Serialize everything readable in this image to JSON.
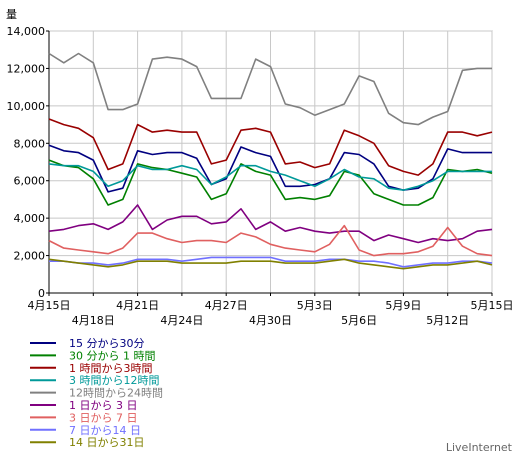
{
  "chart_data": {
    "type": "line",
    "ylabel": "量",
    "ylim": [
      0,
      14000
    ],
    "yticks": [
      0,
      2000,
      4000,
      6000,
      8000,
      10000,
      12000,
      14000
    ],
    "ytick_labels": [
      "0",
      "2,000",
      "4,000",
      "6,000",
      "8,000",
      "10,000",
      "12,000",
      "14,000"
    ],
    "grid": true,
    "legend_position": "bottom-left",
    "x": [
      "4月15日",
      "4月16日",
      "4月17日",
      "4月18日",
      "4月19日",
      "4月20日",
      "4月21日",
      "4月22日",
      "4月23日",
      "4月24日",
      "4月25日",
      "4月26日",
      "4月27日",
      "4月28日",
      "4月29日",
      "4月30日",
      "5月1日",
      "5月2日",
      "5月3日",
      "5月4日",
      "5月5日",
      "5月6日",
      "5月7日",
      "5月8日",
      "5月9日",
      "5月10日",
      "5月11日",
      "5月12日",
      "5月13日",
      "5月14日",
      "5月15日"
    ],
    "xticks": [
      {
        "index": 0,
        "label": "4月15日",
        "row": 0
      },
      {
        "index": 3,
        "label": "4月18日",
        "row": 1
      },
      {
        "index": 6,
        "label": "4月21日",
        "row": 0
      },
      {
        "index": 9,
        "label": "4月24日",
        "row": 1
      },
      {
        "index": 12,
        "label": "4月27日",
        "row": 0
      },
      {
        "index": 15,
        "label": "4月30日",
        "row": 1
      },
      {
        "index": 18,
        "label": "5月3日",
        "row": 0
      },
      {
        "index": 21,
        "label": "5月6日",
        "row": 1
      },
      {
        "index": 24,
        "label": "5月9日",
        "row": 0
      },
      {
        "index": 27,
        "label": "5月12日",
        "row": 1
      },
      {
        "index": 30,
        "label": "5月15日",
        "row": 0
      }
    ],
    "series": [
      {
        "name": "15 分から30分",
        "color": "#000080",
        "values": [
          7900,
          7600,
          7500,
          7100,
          5400,
          5600,
          7600,
          7400,
          7500,
          7500,
          7200,
          5800,
          6100,
          7800,
          7500,
          7300,
          5700,
          5700,
          5800,
          6100,
          7500,
          7400,
          6900,
          5700,
          5500,
          5600,
          6100,
          7700,
          7500,
          7500,
          7500
        ]
      },
      {
        "name": "30 分から 1 時間",
        "color": "#008000",
        "values": [
          7100,
          6800,
          6700,
          6100,
          4700,
          5000,
          6900,
          6700,
          6600,
          6400,
          6200,
          5000,
          5300,
          6900,
          6500,
          6300,
          5000,
          5100,
          5000,
          5200,
          6500,
          6300,
          5300,
          5000,
          4700,
          4700,
          5100,
          6600,
          6500,
          6600,
          6400
        ]
      },
      {
        "name": "1 時間から3時間",
        "color": "#990000",
        "values": [
          9300,
          9000,
          8800,
          8300,
          6600,
          6900,
          9000,
          8600,
          8700,
          8600,
          8600,
          6900,
          7100,
          8700,
          8800,
          8600,
          6900,
          7000,
          6700,
          6900,
          8700,
          8400,
          8000,
          6800,
          6500,
          6300,
          6900,
          8600,
          8600,
          8400,
          8600
        ]
      },
      {
        "name": "3 時間から12時間",
        "color": "#009999",
        "values": [
          6900,
          6800,
          6800,
          6500,
          5700,
          6000,
          6800,
          6600,
          6600,
          6800,
          6600,
          5800,
          6200,
          6800,
          6800,
          6500,
          6300,
          6000,
          5700,
          6100,
          6600,
          6200,
          6100,
          5600,
          5500,
          5700,
          6000,
          6500,
          6500,
          6500,
          6500
        ]
      },
      {
        "name": "12時間から24時間",
        "color": "#808080",
        "values": [
          12800,
          12300,
          12800,
          12300,
          9800,
          9800,
          10100,
          12500,
          12600,
          12500,
          12100,
          10400,
          10400,
          10400,
          12500,
          12100,
          10100,
          9900,
          9500,
          9800,
          10100,
          11600,
          11300,
          9600,
          9100,
          9000,
          9400,
          9700,
          11900,
          12000,
          12000
        ]
      },
      {
        "name": "1 日から 3 日",
        "color": "#800080",
        "values": [
          3300,
          3400,
          3600,
          3700,
          3400,
          3800,
          4700,
          3400,
          3900,
          4100,
          4100,
          3700,
          3800,
          4500,
          3400,
          3800,
          3300,
          3500,
          3300,
          3200,
          3300,
          3300,
          2800,
          3100,
          2900,
          2700,
          2900,
          2800,
          2900,
          3300,
          3400
        ]
      },
      {
        "name": "3 日から 7 日",
        "color": "#e06060",
        "values": [
          2800,
          2400,
          2300,
          2200,
          2100,
          2400,
          3200,
          3200,
          2900,
          2700,
          2800,
          2800,
          2700,
          3200,
          3000,
          2600,
          2400,
          2300,
          2200,
          2600,
          3600,
          2300,
          2000,
          2100,
          2100,
          2200,
          2500,
          3500,
          2500,
          2100,
          2000
        ]
      },
      {
        "name": "7 日から14 日",
        "color": "#7070ff",
        "values": [
          1700,
          1700,
          1600,
          1600,
          1500,
          1600,
          1800,
          1800,
          1800,
          1700,
          1800,
          1900,
          1900,
          1900,
          1900,
          1900,
          1700,
          1700,
          1700,
          1800,
          1800,
          1700,
          1700,
          1600,
          1400,
          1500,
          1600,
          1600,
          1700,
          1700,
          1600
        ]
      },
      {
        "name": "14 日から31日",
        "color": "#808000",
        "values": [
          1800,
          1700,
          1600,
          1500,
          1400,
          1500,
          1700,
          1700,
          1700,
          1600,
          1600,
          1600,
          1600,
          1700,
          1700,
          1700,
          1600,
          1600,
          1600,
          1700,
          1800,
          1600,
          1500,
          1400,
          1300,
          1400,
          1500,
          1500,
          1600,
          1700,
          1500
        ]
      }
    ]
  },
  "watermark": "LiveInternet"
}
